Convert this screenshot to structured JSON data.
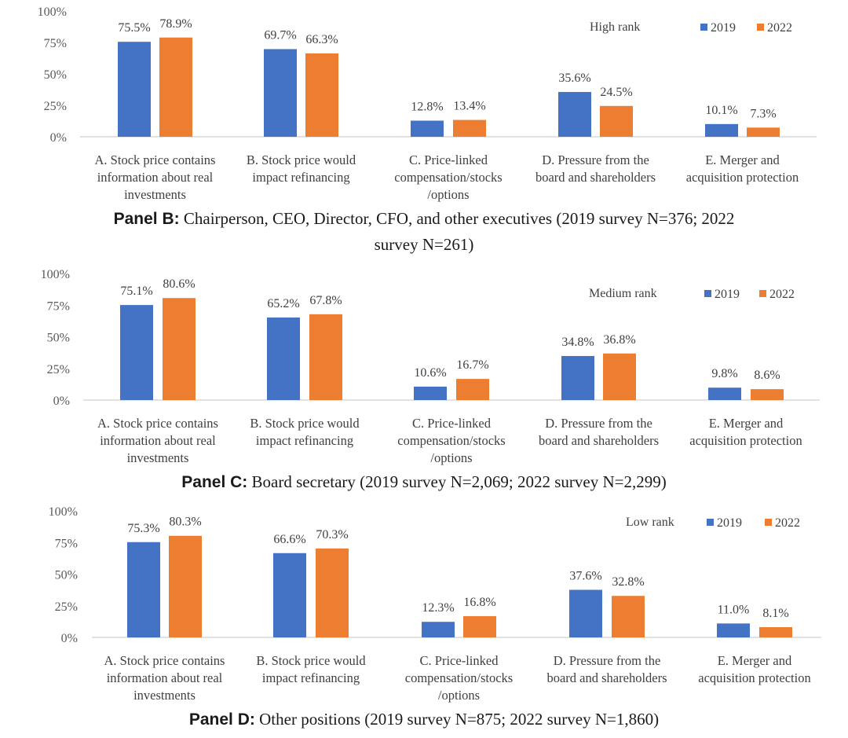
{
  "chart_data": [
    {
      "type": "bar",
      "rank_label": "High rank",
      "categories": [
        [
          "A. Stock price contains",
          "information about real",
          "investments"
        ],
        [
          "B. Stock price would",
          "impact refinancing"
        ],
        [
          "C. Price-linked",
          "compensation/stocks",
          "/options"
        ],
        [
          "D. Pressure from the",
          "board and shareholders"
        ],
        [
          "E. Merger and",
          "acquisition protection"
        ]
      ],
      "series": [
        {
          "name": "2019",
          "color": "#4472c4",
          "values": [
            75.5,
            69.7,
            12.8,
            35.6,
            10.1
          ],
          "labels": [
            "75.5%",
            "69.7%",
            "12.8%",
            "35.6%",
            "10.1%"
          ]
        },
        {
          "name": "2022",
          "color": "#ed7d31",
          "values": [
            78.9,
            66.3,
            13.4,
            24.5,
            7.3
          ],
          "labels": [
            "78.9%",
            "66.3%",
            "13.4%",
            "24.5%",
            "7.3%"
          ]
        }
      ],
      "yticks": [
        "0%",
        "25%",
        "50%",
        "75%",
        "100%"
      ],
      "ylim": [
        0,
        100
      ]
    },
    {
      "type": "bar",
      "rank_label": "Medium rank",
      "categories": [
        [
          "A. Stock price contains",
          "information about real",
          "investments"
        ],
        [
          "B. Stock price would",
          "impact refinancing"
        ],
        [
          "C. Price-linked",
          "compensation/stocks",
          "/options"
        ],
        [
          "D. Pressure from the",
          "board and shareholders"
        ],
        [
          "E. Merger and",
          "acquisition protection"
        ]
      ],
      "series": [
        {
          "name": "2019",
          "color": "#4472c4",
          "values": [
            75.1,
            65.2,
            10.6,
            34.8,
            9.8
          ],
          "labels": [
            "75.1%",
            "65.2%",
            "10.6%",
            "34.8%",
            "9.8%"
          ]
        },
        {
          "name": "2022",
          "color": "#ed7d31",
          "values": [
            80.6,
            67.8,
            16.7,
            36.8,
            8.6
          ],
          "labels": [
            "80.6%",
            "67.8%",
            "16.7%",
            "36.8%",
            "8.6%"
          ]
        }
      ],
      "yticks": [
        "0%",
        "25%",
        "50%",
        "75%",
        "100%"
      ],
      "ylim": [
        0,
        100
      ]
    },
    {
      "type": "bar",
      "rank_label": "Low rank",
      "categories": [
        [
          "A. Stock price contains",
          "information about real",
          "investments"
        ],
        [
          "B. Stock price would",
          "impact refinancing"
        ],
        [
          "C. Price-linked",
          "compensation/stocks",
          "/options"
        ],
        [
          "D. Pressure from the",
          "board and shareholders"
        ],
        [
          "E. Merger and",
          "acquisition protection"
        ]
      ],
      "series": [
        {
          "name": "2019",
          "color": "#4472c4",
          "values": [
            75.3,
            66.6,
            12.3,
            37.6,
            11.0
          ],
          "labels": [
            "75.3%",
            "66.6%",
            "12.3%",
            "37.6%",
            "11.0%"
          ]
        },
        {
          "name": "2022",
          "color": "#ed7d31",
          "values": [
            80.3,
            70.3,
            16.8,
            32.8,
            8.1
          ],
          "labels": [
            "80.3%",
            "70.3%",
            "16.8%",
            "32.8%",
            "8.1%"
          ]
        }
      ],
      "yticks": [
        "0%",
        "25%",
        "50%",
        "75%",
        "100%"
      ],
      "ylim": [
        0,
        100
      ]
    }
  ],
  "captions": {
    "panel_b": {
      "bold": "Panel B:",
      "line1": " Chairperson, CEO, Director, CFO, and other executives (2019 survey N=376; 2022",
      "line2": "survey N=261)"
    },
    "panel_c": {
      "bold": "Panel C:",
      "text": " Board secretary (2019 survey N=2,069; 2022 survey N=2,299)"
    },
    "panel_d": {
      "bold": "Panel D:",
      "text": " Other positions (2019 survey N=875; 2022 survey N=1,860)"
    }
  }
}
